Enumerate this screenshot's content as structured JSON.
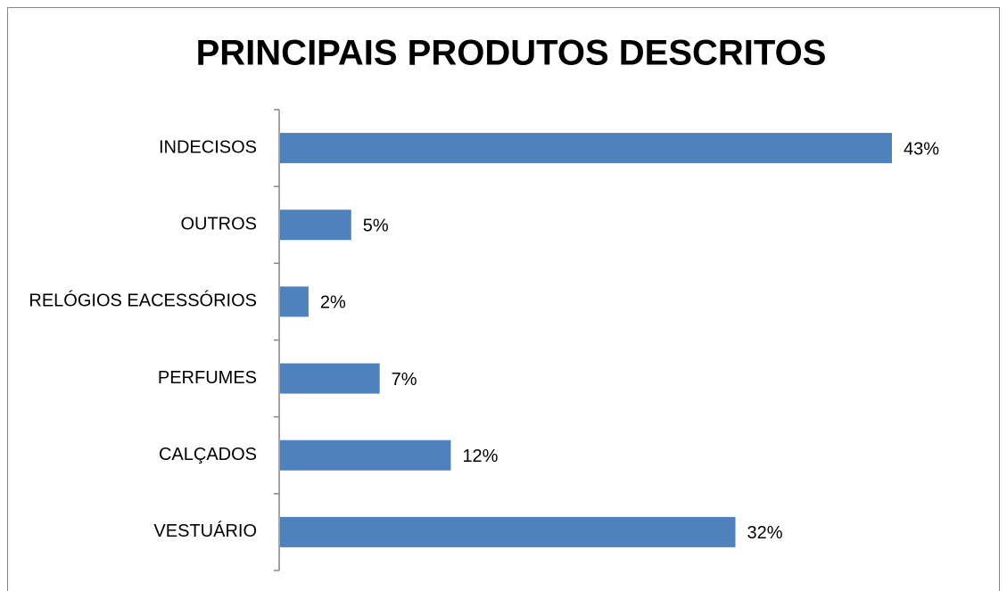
{
  "chart_data": {
    "type": "bar",
    "orientation": "horizontal",
    "title": "PRINCIPAIS PRODUTOS DESCRITOS",
    "categories": [
      "INDECISOS",
      "OUTROS",
      "RELÓGIOS EACESSÓRIOS",
      "PERFUMES",
      "CALÇADOS",
      "VESTUÁRIO"
    ],
    "values": [
      43,
      5,
      2,
      7,
      12,
      32
    ],
    "value_labels": [
      "43%",
      "5%",
      "2%",
      "7%",
      "12%",
      "32%"
    ],
    "color": "#4f81bd"
  }
}
